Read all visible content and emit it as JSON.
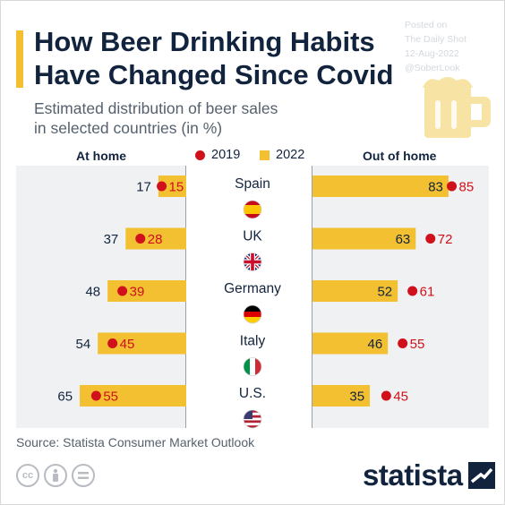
{
  "header": {
    "title_line1": "How Beer Drinking Habits",
    "title_line2": "Have Changed Since Covid",
    "subtitle_line1": "Estimated distribution of beer sales",
    "subtitle_line2": "in selected countries (in %)"
  },
  "watermark": {
    "posted_on": "Posted on",
    "site": "The Daily Shot",
    "date": "12-Aug-2022",
    "handle": "@SoberLook"
  },
  "legend": {
    "left_header": "At home",
    "right_header": "Out of home",
    "series_2019": "2019",
    "series_2022": "2022"
  },
  "colors": {
    "bar_2022": "#f2c031",
    "dot_2019": "#d0101a",
    "navy": "#12243d"
  },
  "chart_data": {
    "type": "bar",
    "categories": [
      "Spain",
      "UK",
      "Germany",
      "Italy",
      "U.S."
    ],
    "flag_icons": [
      "spain-flag-icon",
      "uk-flag-icon",
      "germany-flag-icon",
      "italy-flag-icon",
      "us-flag-icon"
    ],
    "panels": [
      {
        "label": "At home",
        "series": [
          {
            "name": "2022",
            "mark": "bar",
            "values": [
              17,
              37,
              48,
              54,
              65
            ]
          },
          {
            "name": "2019",
            "mark": "dot",
            "values": [
              15,
              28,
              39,
              45,
              55
            ]
          }
        ]
      },
      {
        "label": "Out of home",
        "series": [
          {
            "name": "2022",
            "mark": "bar",
            "values": [
              83,
              63,
              52,
              46,
              35
            ]
          },
          {
            "name": "2019",
            "mark": "dot",
            "values": [
              85,
              72,
              61,
              55,
              45
            ]
          }
        ]
      }
    ],
    "xlim": [
      0,
      100
    ],
    "grid": false,
    "legend_position": "top-center"
  },
  "footer": {
    "source": "Source: Statista Consumer Market Outlook",
    "logo": "statista",
    "license_icons": [
      "creative-commons-icon",
      "attribution-icon",
      "no-derivatives-icon"
    ]
  }
}
